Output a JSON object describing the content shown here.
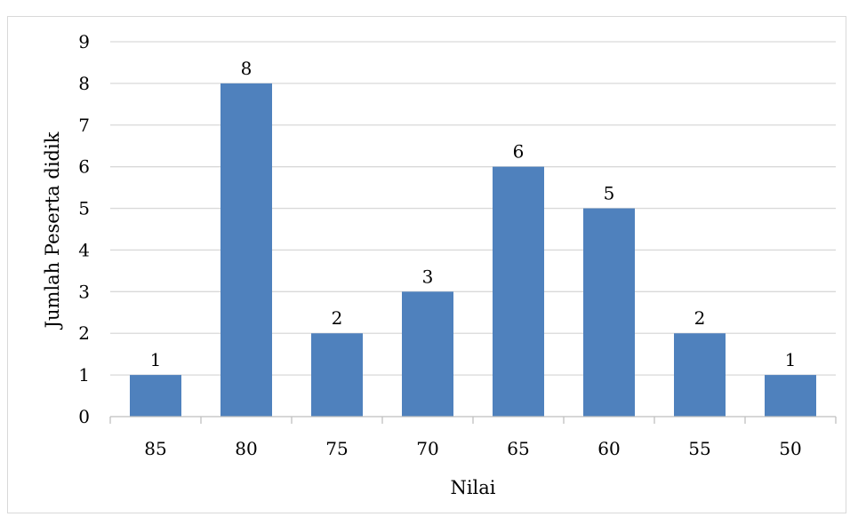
{
  "chart_data": {
    "type": "bar",
    "categories": [
      "85",
      "80",
      "75",
      "70",
      "65",
      "60",
      "55",
      "50"
    ],
    "values": [
      1,
      8,
      2,
      3,
      6,
      5,
      2,
      1
    ],
    "xlabel": "Nilai",
    "ylabel": "Jumlah Peserta didik",
    "ylim": [
      0,
      9
    ],
    "yticks": [
      0,
      1,
      2,
      3,
      4,
      5,
      6,
      7,
      8,
      9
    ],
    "grid": true,
    "legend": "none",
    "data_labels": true,
    "bar_color": "#4f81bd",
    "grid_color": "#d9d9d9"
  }
}
